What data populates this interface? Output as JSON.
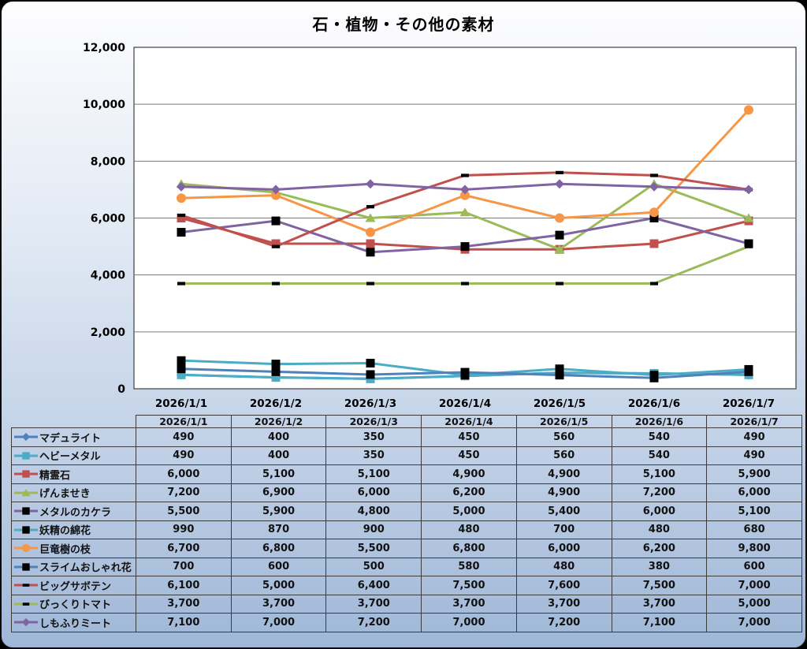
{
  "title": "石・植物・その他の素材",
  "chart_data": {
    "type": "line",
    "title": "石・植物・その他の素材",
    "categories": [
      "2026/1/1",
      "2026/1/2",
      "2026/1/3",
      "2026/1/4",
      "2026/1/5",
      "2026/1/6",
      "2026/1/7"
    ],
    "series": [
      {
        "name": "マデュライト",
        "color": "#4f81bd",
        "marker": "diamond",
        "marker_color": "#4f81bd",
        "values": [
          490,
          400,
          350,
          450,
          560,
          540,
          490
        ]
      },
      {
        "name": "ヘビーメタル",
        "color": "#4bacc6",
        "marker": "square",
        "marker_color": "#4bacc6",
        "values": [
          490,
          400,
          350,
          450,
          560,
          540,
          490
        ]
      },
      {
        "name": "精霊石",
        "color": "#c0504d",
        "marker": "square",
        "marker_color": "#c0504d",
        "values": [
          6000,
          5100,
          5100,
          4900,
          4900,
          5100,
          5900
        ]
      },
      {
        "name": "げんませき",
        "color": "#9bbb59",
        "marker": "triangle",
        "marker_color": "#9bbb59",
        "values": [
          7200,
          6900,
          6000,
          6200,
          4900,
          7200,
          6000
        ]
      },
      {
        "name": "メタルのカケラ",
        "color": "#8064a2",
        "marker": "square",
        "marker_color": "#000000",
        "values": [
          5500,
          5900,
          4800,
          5000,
          5400,
          6000,
          5100
        ]
      },
      {
        "name": "妖精の綿花",
        "color": "#4bacc6",
        "marker": "square",
        "marker_color": "#000000",
        "values": [
          990,
          870,
          900,
          480,
          700,
          480,
          680
        ]
      },
      {
        "name": "巨竜樹の枝",
        "color": "#f79646",
        "marker": "circle",
        "marker_color": "#f79646",
        "values": [
          6700,
          6800,
          5500,
          6800,
          6000,
          6200,
          9800
        ]
      },
      {
        "name": "スライムおしゃれ花",
        "color": "#4f81bd",
        "marker": "square",
        "marker_color": "#000000",
        "values": [
          700,
          600,
          500,
          580,
          480,
          380,
          600
        ]
      },
      {
        "name": "ビッグサボテン",
        "color": "#c0504d",
        "marker": "dash",
        "marker_color": "#000000",
        "values": [
          6100,
          5000,
          6400,
          7500,
          7600,
          7500,
          7000
        ]
      },
      {
        "name": "びっくりトマト",
        "color": "#9bbb59",
        "marker": "dash",
        "marker_color": "#000000",
        "values": [
          3700,
          3700,
          3700,
          3700,
          3700,
          3700,
          5000
        ]
      },
      {
        "name": "しもふりミート",
        "color": "#8064a2",
        "marker": "diamond",
        "marker_color": "#8064a2",
        "values": [
          7100,
          7000,
          7200,
          7000,
          7200,
          7100,
          7000
        ]
      }
    ],
    "ylim": [
      0,
      12000
    ],
    "ytick_step": 2000,
    "ytick_labels": [
      "0",
      "2,000",
      "4,000",
      "6,000",
      "8,000",
      "10,000",
      "12,000"
    ],
    "grid": true,
    "plot_bg": "#ffffff",
    "grid_color": "#7a7a7a",
    "plot_border_color": "#4d4d4d",
    "legend_position": "table-left-column"
  }
}
